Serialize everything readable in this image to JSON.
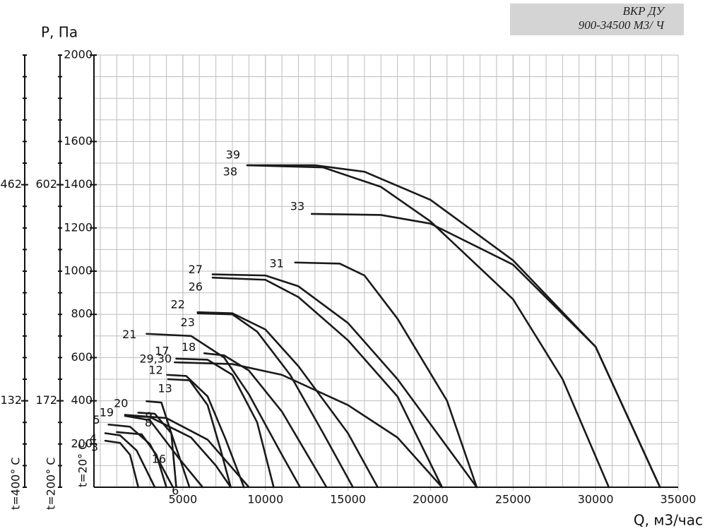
{
  "header": {
    "line1": "ВКР ДУ",
    "line2": "900-34500 М3/ Ч"
  },
  "chart_data": {
    "type": "line",
    "y_label": "P, Па",
    "x_label": "Q, м3/час",
    "y_condition": "t=20° C",
    "xlim": [
      0,
      35000
    ],
    "xticks": [
      5000,
      10000,
      15000,
      20000,
      25000,
      30000,
      35000
    ],
    "ylim": [
      0,
      2000
    ],
    "yticks": [
      200,
      400,
      600,
      800,
      1000,
      1200,
      1400,
      1600,
      2000
    ],
    "grid": true,
    "extra_axes": [
      {
        "label": "t=200° C",
        "ylim": [
          0,
          860
        ],
        "yticks": [
          172,
          602
        ]
      },
      {
        "label": "t=400° C",
        "ylim": [
          0,
          660
        ],
        "yticks": [
          132,
          462
        ]
      }
    ],
    "series": [
      {
        "name": "39",
        "color": "#1a1a1a",
        "x": [
          8900,
          13000,
          16000,
          20000,
          25000,
          30000,
          33900
        ],
        "values": [
          1490,
          1490,
          1460,
          1330,
          1050,
          650,
          0
        ]
      },
      {
        "name": "38",
        "color": "#1a1a1a",
        "x": [
          8900,
          13500,
          17000,
          20000,
          25000,
          28000,
          30800
        ],
        "values": [
          1490,
          1480,
          1390,
          1230,
          870,
          500,
          0
        ]
      },
      {
        "name": "33",
        "color": "#1a1a1a",
        "x": [
          12800,
          17000,
          20000,
          25000,
          30000,
          33900
        ],
        "values": [
          1265,
          1260,
          1220,
          1030,
          650,
          0
        ]
      },
      {
        "name": "31",
        "color": "#1a1a1a",
        "x": [
          11800,
          14500,
          16000,
          18000,
          21000,
          22800
        ],
        "values": [
          1040,
          1035,
          980,
          780,
          400,
          0
        ]
      },
      {
        "name": "27",
        "color": "#1a1a1a",
        "x": [
          6800,
          10000,
          12000,
          15000,
          18000,
          22800
        ],
        "values": [
          985,
          980,
          930,
          760,
          500,
          0
        ]
      },
      {
        "name": "26",
        "color": "#1a1a1a",
        "x": [
          6800,
          10000,
          12000,
          15000,
          18000,
          20700
        ],
        "values": [
          970,
          960,
          880,
          680,
          420,
          0
        ]
      },
      {
        "name": "22",
        "color": "#1a1a1a",
        "x": [
          5900,
          8000,
          10000,
          12000,
          15000,
          16800
        ],
        "values": [
          810,
          805,
          730,
          560,
          250,
          0
        ]
      },
      {
        "name": "23",
        "color": "#1a1a1a",
        "x": [
          5900,
          8000,
          9500,
          11500,
          13500,
          15300
        ],
        "values": [
          805,
          800,
          720,
          520,
          250,
          0
        ]
      },
      {
        "name": "21",
        "color": "#1a1a1a",
        "x": [
          2800,
          5500,
          7500,
          9000,
          11000,
          12100
        ],
        "values": [
          710,
          700,
          600,
          430,
          150,
          0
        ]
      },
      {
        "name": "18",
        "color": "#1a1a1a",
        "x": [
          6300,
          7500,
          9000,
          11000,
          13700
        ],
        "values": [
          620,
          610,
          540,
          350,
          0
        ]
      },
      {
        "name": "17",
        "color": "#1a1a1a",
        "x": [
          4600,
          6500,
          8000,
          9500,
          10500
        ],
        "values": [
          595,
          590,
          520,
          300,
          0
        ]
      },
      {
        "name": "29,30",
        "color": "#1a1a1a",
        "x": [
          4500,
          8000,
          11000,
          15000,
          18000,
          20700
        ],
        "values": [
          578,
          570,
          520,
          380,
          230,
          0
        ]
      },
      {
        "name": "12",
        "color": "#1a1a1a",
        "x": [
          4050,
          5200,
          6500,
          7600,
          8700
        ],
        "values": [
          520,
          515,
          420,
          220,
          0
        ]
      },
      {
        "name": "13",
        "color": "#1a1a1a",
        "x": [
          4100,
          5400,
          6500,
          7300,
          7900
        ],
        "values": [
          500,
          495,
          380,
          170,
          0
        ]
      },
      {
        "name": "20",
        "color": "#1a1a1a",
        "x": [
          2800,
          3700,
          4300,
          4600
        ],
        "values": [
          398,
          392,
          250,
          0
        ]
      },
      {
        "name": "9",
        "color": "#1a1a1a",
        "x": [
          2300,
          3300,
          4300,
          5400
        ],
        "values": [
          345,
          340,
          250,
          0
        ]
      },
      {
        "name": "19",
        "color": "#1a1a1a",
        "x": [
          1500,
          3000,
          5500,
          7000,
          7900
        ],
        "values": [
          330,
          325,
          230,
          100,
          0
        ]
      },
      {
        "name": "8",
        "color": "#1a1a1a",
        "x": [
          1500,
          4000,
          6500,
          9000
        ],
        "values": [
          335,
          320,
          220,
          0
        ]
      },
      {
        "name": "16",
        "color": "#1a1a1a",
        "x": [
          1500,
          3000,
          4800,
          6200
        ],
        "values": [
          330,
          310,
          130,
          0
        ]
      },
      {
        "name": "5",
        "color": "#1a1a1a",
        "x": [
          500,
          1800,
          3000,
          4400
        ],
        "values": [
          290,
          280,
          200,
          0
        ]
      },
      {
        "name": "6",
        "color": "#1a1a1a",
        "x": [
          1000,
          2500,
          3400,
          4000
        ],
        "values": [
          255,
          245,
          150,
          0
        ]
      },
      {
        "name": "4",
        "color": "#1a1a1a",
        "x": [
          300,
          1200,
          2200,
          3300
        ],
        "values": [
          250,
          240,
          170,
          0
        ]
      },
      {
        "name": "3",
        "color": "#1a1a1a",
        "x": [
          300,
          1200,
          1800,
          2300
        ],
        "values": [
          215,
          205,
          150,
          0
        ]
      }
    ]
  }
}
